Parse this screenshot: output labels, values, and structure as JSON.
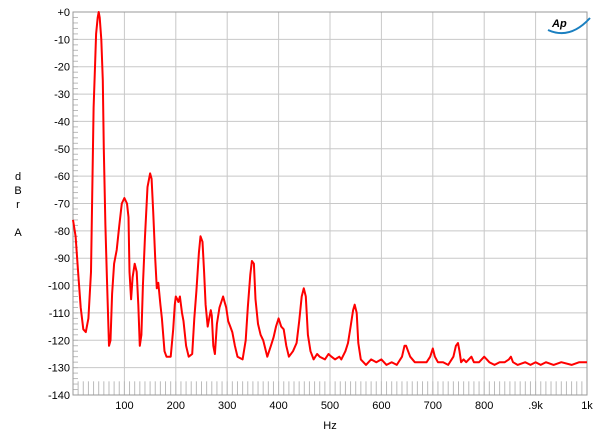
{
  "chart_data": {
    "type": "line",
    "title": "",
    "xlabel": "Hz",
    "ylabel_letters": [
      "d",
      "B",
      "r",
      "",
      "A"
    ],
    "xlim": [
      0,
      1000
    ],
    "ylim": [
      -140,
      0
    ],
    "grid": true,
    "x_ticks": [
      100,
      200,
      300,
      400,
      500,
      600,
      700,
      800,
      900,
      1000
    ],
    "x_tick_labels": [
      "100",
      "200",
      "300",
      "400",
      "500",
      "600",
      "700",
      "800",
      ".9k",
      "1k"
    ],
    "y_ticks": [
      0,
      -10,
      -20,
      -30,
      -40,
      -50,
      -60,
      -70,
      -80,
      -90,
      -100,
      -110,
      -120,
      -130,
      -140
    ],
    "y_tick_labels": [
      "+0",
      "-10",
      "-20",
      "-30",
      "-40",
      "-50",
      "-60",
      "-70",
      "-80",
      "-90",
      "-100",
      "-110",
      "-120",
      "-130",
      "-140"
    ],
    "line_color": "#ff0000",
    "grid_color": "#c8c8c8",
    "logo": "Ap",
    "logo_color": "#1a7fc0",
    "series": [
      {
        "x": [
          0,
          5,
          10,
          15,
          20,
          25,
          30,
          35,
          40,
          43,
          45,
          48,
          50,
          52,
          55,
          58,
          60,
          63,
          66,
          70,
          73,
          76,
          80,
          85,
          90,
          95,
          100,
          105,
          108,
          110,
          113,
          116,
          120,
          124,
          127,
          130,
          133,
          136,
          140,
          145,
          150,
          153,
          156,
          160,
          163,
          166,
          170,
          173,
          178,
          182,
          190,
          195,
          198,
          200,
          203,
          205,
          208,
          212,
          215,
          220,
          225,
          232,
          236,
          240,
          245,
          248,
          252,
          255,
          258,
          262,
          265,
          268,
          270,
          273,
          276,
          280,
          285,
          292,
          295,
          298,
          302,
          306,
          310,
          315,
          320,
          330,
          336,
          340,
          345,
          348,
          352,
          355,
          360,
          365,
          370,
          378,
          385,
          390,
          395,
          400,
          405,
          410,
          415,
          420,
          428,
          435,
          440,
          445,
          449,
          453,
          457,
          462,
          468,
          475,
          480,
          490,
          497,
          503,
          510,
          518,
          522,
          530,
          535,
          540,
          545,
          548,
          552,
          555,
          560,
          570,
          580,
          590,
          600,
          610,
          620,
          630,
          640,
          645,
          648,
          652,
          656,
          665,
          675,
          688,
          695,
          700,
          704,
          710,
          720,
          730,
          740,
          745,
          749,
          752,
          755,
          760,
          765,
          770,
          775,
          780,
          790,
          800,
          805,
          810,
          820,
          830,
          840,
          848,
          852,
          856,
          865,
          880,
          890,
          900,
          910,
          920,
          935,
          950,
          970,
          985,
          1000
        ],
        "y": [
          -76,
          -82,
          -95,
          -108,
          -116,
          -117,
          -112,
          -95,
          -35,
          -19,
          -8,
          -2,
          0,
          -2,
          -10,
          -25,
          -50,
          -78,
          -97,
          -122,
          -120,
          -103,
          -92,
          -87,
          -78,
          -70,
          -68,
          -70,
          -75,
          -95,
          -105,
          -97,
          -92,
          -95,
          -107,
          -122,
          -118,
          -100,
          -82,
          -64,
          -59,
          -61,
          -73,
          -90,
          -101,
          -99,
          -107,
          -112,
          -124,
          -126,
          -126,
          -116,
          -107,
          -104,
          -105,
          -106,
          -104,
          -110,
          -113,
          -122,
          -126,
          -125,
          -112,
          -102,
          -88,
          -82,
          -84,
          -95,
          -107,
          -115,
          -112,
          -109,
          -111,
          -122,
          -125,
          -114,
          -108,
          -104,
          -106,
          -108,
          -113,
          -115,
          -117,
          -122,
          -126,
          -127,
          -120,
          -108,
          -96,
          -91,
          -92,
          -105,
          -114,
          -118,
          -120,
          -126,
          -122,
          -119,
          -115,
          -112,
          -115,
          -116,
          -122,
          -126,
          -124,
          -121,
          -113,
          -104,
          -101,
          -104,
          -118,
          -124,
          -127,
          -125,
          -126,
          -127,
          -125,
          -126,
          -127,
          -126,
          -127,
          -124,
          -121,
          -115,
          -109,
          -107,
          -110,
          -121,
          -127,
          -129,
          -127,
          -128,
          -127,
          -129,
          -128,
          -129,
          -126,
          -122,
          -122,
          -124,
          -126,
          -128,
          -128,
          -128,
          -126,
          -123,
          -126,
          -128,
          -128,
          -129,
          -126,
          -122,
          -121,
          -124,
          -128,
          -127,
          -128,
          -127,
          -126,
          -128,
          -128,
          -126,
          -127,
          -128,
          -129,
          -128,
          -128,
          -127,
          -126,
          -128,
          -129,
          -128,
          -129,
          -128,
          -129,
          -128,
          -129,
          -128,
          -129,
          -128,
          -128
        ]
      }
    ]
  }
}
